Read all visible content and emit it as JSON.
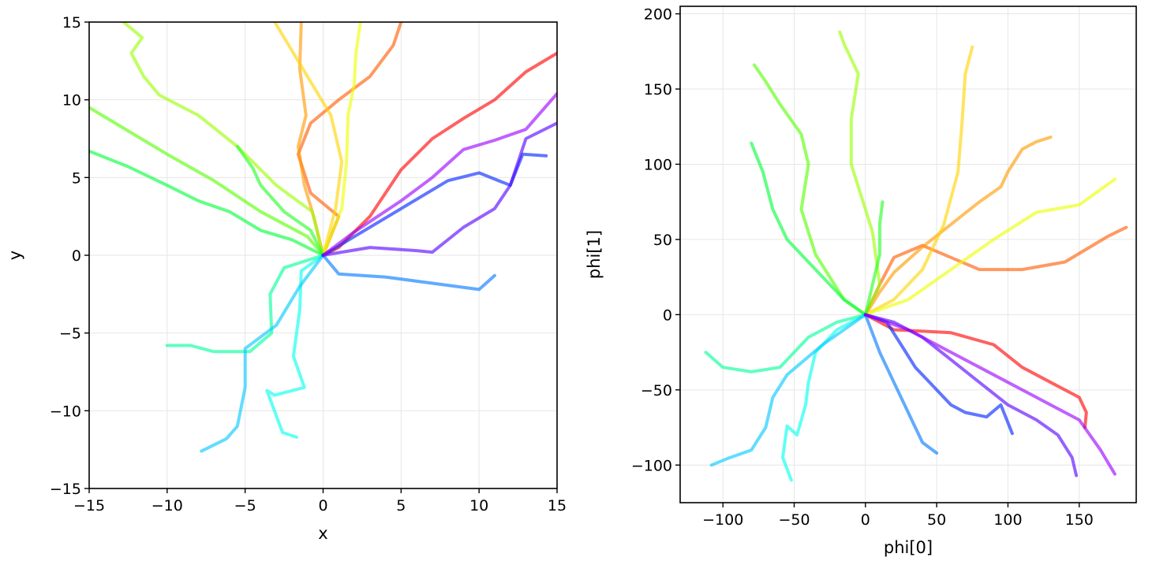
{
  "chart_data": [
    {
      "type": "line",
      "xlabel": "x",
      "ylabel": "y",
      "xlim": [
        -15,
        15
      ],
      "ylim": [
        -15,
        15
      ],
      "xticks": [
        -15,
        -10,
        -5,
        0,
        5,
        10,
        15
      ],
      "yticks": [
        -15,
        -10,
        -5,
        0,
        5,
        10,
        15
      ],
      "grid": true,
      "series": [
        {
          "color": "#ff0000",
          "x": [
            0,
            1.0,
            3.0,
            5.0,
            7.0,
            9.0,
            11.0,
            13.0,
            15.0
          ],
          "y": [
            0,
            0.5,
            2.5,
            5.5,
            7.5,
            8.8,
            10.0,
            11.8,
            13.0
          ]
        },
        {
          "color": "#ff5a00",
          "x": [
            0,
            1.0,
            -0.8,
            -1.6,
            -0.8,
            1.0,
            3.0,
            4.5,
            5.0
          ],
          "y": [
            0,
            2.5,
            4.0,
            6.5,
            8.5,
            10.0,
            11.5,
            13.5,
            15.0
          ]
        },
        {
          "color": "#ff9a00",
          "x": [
            0,
            -0.6,
            -1.2,
            -1.6,
            -1.1,
            -1.5,
            -1.4
          ],
          "y": [
            0,
            2.5,
            4.5,
            7.0,
            9.0,
            12.0,
            15.0
          ]
        },
        {
          "color": "#ffd400",
          "x": [
            0,
            0.8,
            1.2,
            0.5,
            -1.0,
            -2.2,
            -3.1
          ],
          "y": [
            0,
            3.0,
            6.0,
            9.0,
            11.5,
            13.5,
            15.0
          ]
        },
        {
          "color": "#ecff00",
          "x": [
            0,
            1.2,
            1.5,
            1.6,
            2.0,
            2.1,
            2.4
          ],
          "y": [
            0,
            3.0,
            6.0,
            9.0,
            11.0,
            13.0,
            15.0
          ]
        },
        {
          "color": "#9aff00",
          "x": [
            0,
            -0.7,
            -3.0,
            -5.5,
            -8.0,
            -10.5,
            -11.5,
            -12.3,
            -11.6,
            -12.8
          ],
          "y": [
            0,
            2.8,
            4.5,
            7.0,
            9.0,
            10.3,
            11.5,
            13.0,
            14.0,
            15.0
          ]
        },
        {
          "color": "#55ff00",
          "x": [
            0,
            -1.0,
            -4.0,
            -7.0,
            -10.0,
            -12.5,
            -15.0
          ],
          "y": [
            0,
            1.2,
            2.8,
            4.8,
            6.5,
            8.0,
            9.5
          ]
        },
        {
          "color": "#22ff22",
          "x": [
            0,
            -0.8,
            -2.5,
            -4.0,
            -4.5,
            -5.5
          ],
          "y": [
            0,
            1.6,
            2.8,
            4.5,
            5.6,
            7.0
          ]
        },
        {
          "color": "#00ff3a",
          "x": [
            0,
            -2.0,
            -4.0,
            -6.0,
            -8.0,
            -10.0,
            -12.5,
            -15.0
          ],
          "y": [
            0,
            1.0,
            1.6,
            2.8,
            3.5,
            4.5,
            5.7,
            6.7
          ]
        },
        {
          "color": "#00ff99",
          "x": [
            0,
            -2.5,
            -3.4,
            -3.3,
            -4.7,
            -7.0,
            -8.5,
            -10.0
          ],
          "y": [
            0,
            -0.8,
            -2.5,
            -5.0,
            -6.2,
            -6.2,
            -5.8,
            -5.8
          ]
        },
        {
          "color": "#00ffee",
          "x": [
            0,
            -1.4,
            -1.5,
            -1.9,
            -1.2,
            -3.1,
            -3.6,
            -2.6,
            -1.7
          ],
          "y": [
            0,
            -1.0,
            -3.5,
            -6.5,
            -8.5,
            -9.0,
            -8.7,
            -11.4,
            -11.7
          ]
        },
        {
          "color": "#00c8ff",
          "x": [
            0,
            -1.5,
            -3.0,
            -5.0,
            -5.0,
            -5.5,
            -6.2,
            -7.8
          ],
          "y": [
            0,
            -2.0,
            -4.5,
            -6.0,
            -8.5,
            -11.0,
            -11.8,
            -12.6
          ]
        },
        {
          "color": "#0078ff",
          "x": [
            0,
            1.0,
            4.0,
            7.0,
            10.0,
            11.0
          ],
          "y": [
            0,
            -1.2,
            -1.4,
            -1.8,
            -2.2,
            -1.3
          ]
        },
        {
          "color": "#0022ff",
          "x": [
            0,
            2.0,
            5.0,
            8.0,
            10.0,
            12.0,
            12.8,
            14.3
          ],
          "y": [
            0,
            1.2,
            3.0,
            4.8,
            5.3,
            4.5,
            6.5,
            6.4
          ]
        },
        {
          "color": "#5500ff",
          "x": [
            0,
            3.0,
            6.0,
            7.0,
            9.0,
            11.0,
            12.0,
            13.0,
            15.0
          ],
          "y": [
            0,
            0.5,
            0.3,
            0.2,
            1.8,
            3.0,
            4.5,
            7.5,
            8.5
          ]
        },
        {
          "color": "#9a00ff",
          "x": [
            0,
            2.0,
            5.0,
            7.0,
            9.0,
            11.0,
            13.0,
            15.0
          ],
          "y": [
            0,
            1.5,
            3.5,
            5.0,
            6.8,
            7.4,
            8.1,
            10.4
          ]
        }
      ]
    },
    {
      "type": "line",
      "xlabel": "phi[0]",
      "ylabel": "phi[1]",
      "xlim": [
        -130,
        190
      ],
      "ylim": [
        -125,
        205
      ],
      "xticks": [
        -100,
        -50,
        0,
        50,
        100,
        150
      ],
      "yticks": [
        -100,
        -50,
        0,
        50,
        100,
        150,
        200
      ],
      "grid": true,
      "series": [
        {
          "color": "#ff0000",
          "x": [
            0,
            20,
            60,
            90,
            110,
            130,
            150,
            155,
            154
          ],
          "y": [
            0,
            -10,
            -12,
            -20,
            -35,
            -45,
            -55,
            -65,
            -75
          ]
        },
        {
          "color": "#ff5a00",
          "x": [
            0,
            10,
            20,
            40,
            60,
            80,
            110,
            140,
            170,
            183
          ],
          "y": [
            0,
            20,
            38,
            46,
            38,
            30,
            30,
            35,
            52,
            58
          ]
        },
        {
          "color": "#ff9a00",
          "x": [
            0,
            10,
            20,
            40,
            60,
            80,
            95,
            100,
            110,
            120,
            130
          ],
          "y": [
            0,
            15,
            28,
            45,
            60,
            75,
            85,
            95,
            110,
            115,
            118
          ]
        },
        {
          "color": "#ffd400",
          "x": [
            0,
            20,
            40,
            55,
            65,
            68,
            70,
            75
          ],
          "y": [
            0,
            10,
            30,
            60,
            95,
            130,
            160,
            178
          ]
        },
        {
          "color": "#ecff00",
          "x": [
            0,
            30,
            60,
            90,
            120,
            150,
            175
          ],
          "y": [
            0,
            10,
            30,
            50,
            68,
            73,
            90
          ]
        },
        {
          "color": "#9aff00",
          "x": [
            0,
            10,
            5,
            -10,
            -10,
            -5,
            -15,
            -18
          ],
          "y": [
            0,
            20,
            55,
            100,
            130,
            160,
            180,
            188
          ]
        },
        {
          "color": "#55ff00",
          "x": [
            0,
            -15,
            -35,
            -45,
            -40,
            -45,
            -60,
            -70,
            -78
          ],
          "y": [
            0,
            10,
            40,
            70,
            100,
            120,
            140,
            155,
            166
          ]
        },
        {
          "color": "#22ff22",
          "x": [
            0,
            5,
            10,
            10,
            12
          ],
          "y": [
            0,
            20,
            40,
            60,
            75
          ]
        },
        {
          "color": "#00ff3a",
          "x": [
            0,
            -15,
            -35,
            -55,
            -65,
            -72,
            -80
          ],
          "y": [
            0,
            10,
            30,
            50,
            70,
            95,
            114
          ]
        },
        {
          "color": "#00ff99",
          "x": [
            0,
            -20,
            -40,
            -60,
            -80,
            -100,
            -112
          ],
          "y": [
            0,
            -5,
            -15,
            -35,
            -38,
            -35,
            -25
          ]
        },
        {
          "color": "#00ffee",
          "x": [
            0,
            -20,
            -35,
            -40,
            -42,
            -48,
            -55,
            -58,
            -52
          ],
          "y": [
            0,
            -10,
            -25,
            -45,
            -60,
            -80,
            -74,
            -95,
            -110
          ]
        },
        {
          "color": "#00c8ff",
          "x": [
            0,
            -15,
            -30,
            -55,
            -65,
            -70,
            -80,
            -95,
            -108
          ],
          "y": [
            0,
            -10,
            -20,
            -40,
            -55,
            -75,
            -90,
            -95,
            -100
          ]
        },
        {
          "color": "#0078ff",
          "x": [
            0,
            10,
            20,
            30,
            40,
            50
          ],
          "y": [
            0,
            -25,
            -45,
            -65,
            -85,
            -92
          ]
        },
        {
          "color": "#0022ff",
          "x": [
            0,
            15,
            25,
            35,
            45,
            60,
            70,
            85,
            95,
            103
          ],
          "y": [
            0,
            -5,
            -20,
            -35,
            -45,
            -60,
            -65,
            -68,
            -60,
            -79
          ]
        },
        {
          "color": "#5500ff",
          "x": [
            0,
            20,
            40,
            60,
            80,
            100,
            120,
            135,
            145,
            148
          ],
          "y": [
            0,
            -5,
            -15,
            -30,
            -45,
            -60,
            -70,
            -80,
            -95,
            -107
          ]
        },
        {
          "color": "#9a00ff",
          "x": [
            0,
            30,
            60,
            90,
            120,
            150,
            165,
            175
          ],
          "y": [
            0,
            -10,
            -25,
            -40,
            -55,
            -70,
            -90,
            -106
          ]
        }
      ]
    }
  ]
}
